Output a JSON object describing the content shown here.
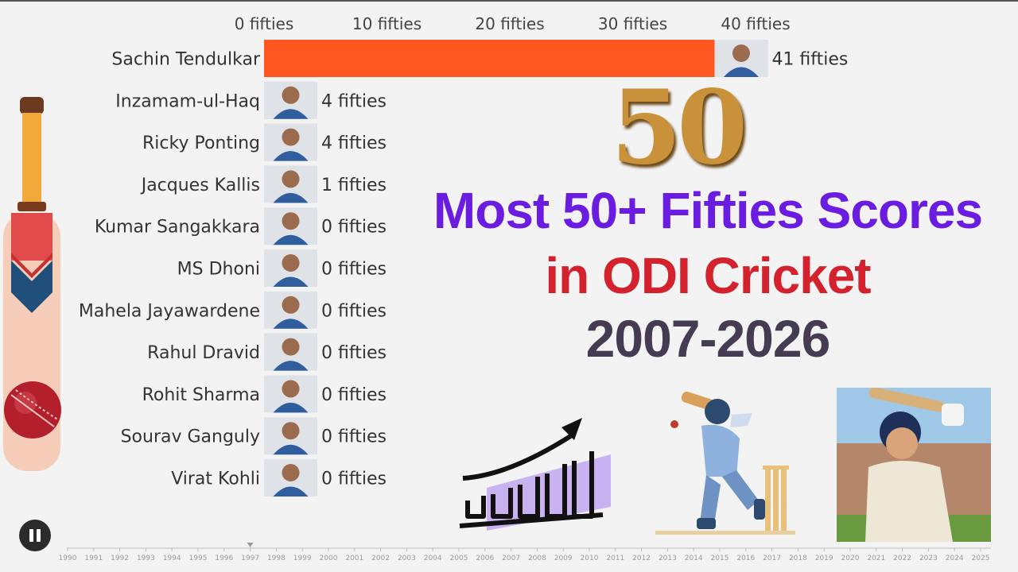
{
  "chart_data": {
    "type": "bar",
    "orientation": "horizontal",
    "unit_suffix": "fifties",
    "xlim": [
      0,
      41
    ],
    "x_ticks": [
      0,
      10,
      20,
      30,
      40
    ],
    "x_tick_labels": [
      "0 fifties",
      "10 fifties",
      "20 fifties",
      "30 fifties",
      "40 fifties"
    ],
    "categories": [
      "Sachin Tendulkar",
      "Inzamam-ul-Haq",
      "Ricky Ponting",
      "Jacques Kallis",
      "Kumar Sangakkara",
      "MS Dhoni",
      "Mahela Jayawardene",
      "Rahul Dravid",
      "Rohit Sharma",
      "Sourav Ganguly",
      "Virat Kohli"
    ],
    "values": [
      41,
      4,
      4,
      1,
      0,
      0,
      0,
      0,
      0,
      0,
      0
    ],
    "value_labels": [
      "41 fifties",
      "4 fifties",
      "4 fifties",
      "1 fifties",
      "0 fifties",
      "0 fifties",
      "0 fifties",
      "0 fifties",
      "0 fifties",
      "0 fifties",
      "0 fifties"
    ],
    "bar_colors": [
      "#ff5722",
      "#c6d6de",
      "#ffc4cc",
      "#d0d0d0",
      "#e5e5e5",
      "#e5e5e5",
      "#e5e5e5",
      "#e5e5e5",
      "#e5e5e5",
      "#e5e5e5",
      "#e5e5e5"
    ],
    "timeline_years": [
      "1990",
      "1991",
      "1992",
      "1993",
      "1994",
      "1995",
      "1996",
      "1997",
      "1998",
      "1999",
      "2000",
      "2001",
      "2002",
      "2003",
      "2004",
      "2005",
      "2006",
      "2007",
      "2008",
      "2009",
      "2010",
      "2011",
      "2012",
      "2013",
      "2014",
      "2015",
      "2016",
      "2017",
      "2018",
      "2019",
      "2020",
      "2021",
      "2022",
      "2023",
      "2024",
      "2025"
    ],
    "current_year_marker": "1997",
    "grid": false
  },
  "overlay": {
    "badge_50": "50",
    "title_line1": "Most 50+ Fifties Scores",
    "title_line2": "in ODI Cricket",
    "title_line3": "2007-2026"
  },
  "icons": {
    "pause": "pause-icon",
    "bat": "cricket-bat-icon",
    "ball": "cricket-ball-icon",
    "growth": "growth-chart-icon",
    "batsman": "batsman-illustration",
    "player_photo": "player-photo"
  },
  "colors": {
    "lead_bar": "#ff5722",
    "title_purple": "#6a1de0",
    "title_red": "#d3222d",
    "title_dark": "#453b52",
    "gold": "#c9923a"
  }
}
